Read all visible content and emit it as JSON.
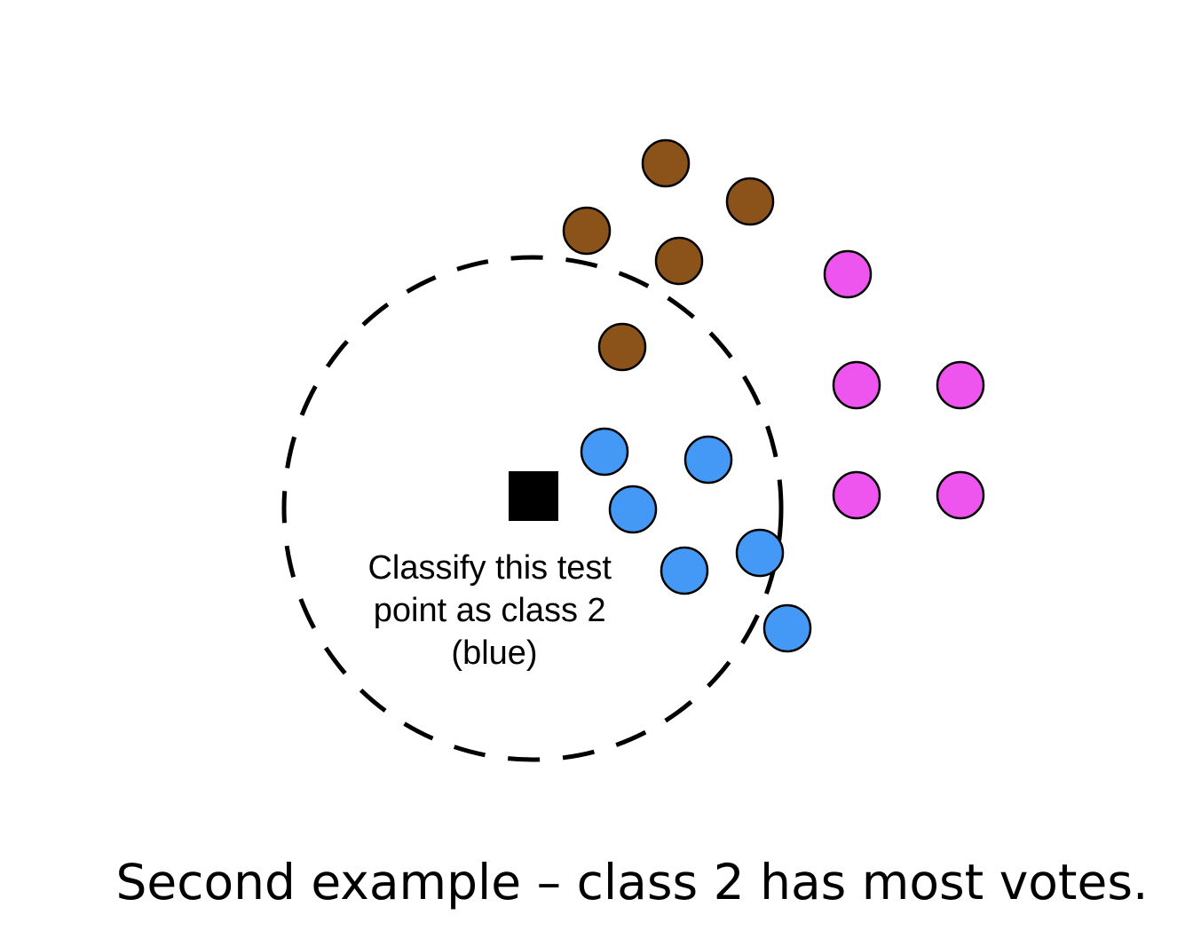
{
  "annotation": {
    "lines": [
      "Classify this test",
      "point as class 2",
      "(blue)"
    ]
  },
  "caption": "Second example – class 2 has most votes.",
  "colors": {
    "brown": "#8B5219",
    "magenta": "#EE55EE",
    "blue": "#4499F7",
    "test_point": "#000000",
    "outline": "#000000"
  },
  "legend": {
    "classes": [
      "brown",
      "magenta",
      "blue"
    ]
  },
  "test_point": {
    "shape": "square",
    "predicted_class": "blue"
  }
}
